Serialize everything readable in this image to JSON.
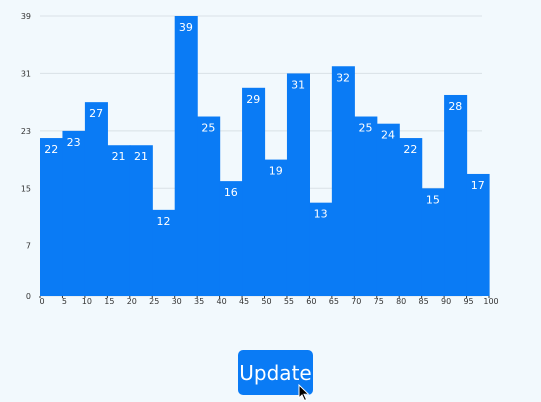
{
  "colors": {
    "bar": "#0a7bf5",
    "grid": "#d9e1e6",
    "axis": "#333333",
    "background": "#f2f9fd"
  },
  "chart_data": {
    "type": "bar",
    "x": [
      0,
      5,
      10,
      15,
      20,
      25,
      30,
      35,
      40,
      45,
      50,
      55,
      60,
      65,
      70,
      75,
      80,
      85,
      90,
      95
    ],
    "values": [
      22,
      23,
      27,
      21,
      21,
      12,
      39,
      25,
      16,
      29,
      19,
      31,
      13,
      32,
      25,
      24,
      22,
      15,
      28,
      17
    ],
    "xticks": [
      0,
      5,
      10,
      15,
      20,
      25,
      30,
      35,
      40,
      45,
      50,
      55,
      60,
      65,
      70,
      75,
      80,
      85,
      90,
      95,
      100
    ],
    "yticks": [
      0,
      7,
      15,
      23,
      31,
      39
    ],
    "xlim": [
      0,
      100
    ],
    "ylim": [
      0,
      39
    ],
    "grid": true,
    "title": "",
    "xlabel": "",
    "ylabel": ""
  },
  "button": {
    "label": "Update",
    "icon": "cursor-icon"
  }
}
